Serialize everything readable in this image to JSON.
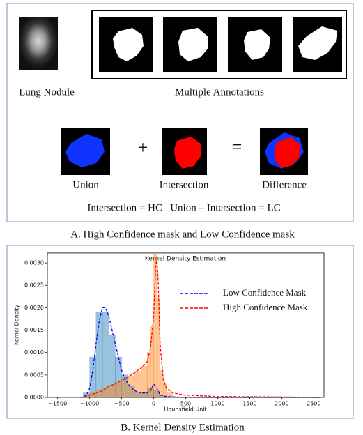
{
  "panel_a": {
    "nodule_label": "Lung Nodule",
    "annotations_label": "Multiple Annotations",
    "union_label": "Union",
    "plus": "+",
    "intersection_label": "Intersection",
    "equals": "=",
    "difference_label": "Difference",
    "formula": "Intersection = HC   Union – Intersection = LC",
    "caption": "A. High Confidence mask and Low Confidence mask"
  },
  "chart_data": {
    "type": "kde",
    "title": "Kernel Density Estimation",
    "x_label": "Hounsfield Unit",
    "y_label": "Kernel Density",
    "xlim": [
      -1660,
      2660
    ],
    "ylim": [
      0,
      0.00322
    ],
    "xticks": [
      {
        "value": -1500,
        "label": "−1500"
      },
      {
        "value": -1000,
        "label": "−1000"
      },
      {
        "value": -500,
        "label": "−500"
      },
      0,
      500,
      1000,
      1500,
      2000,
      2500
    ],
    "yticks": [
      {
        "value": 0,
        "label": "0.0000"
      },
      {
        "value": 0.0005,
        "label": "0.0005"
      },
      {
        "value": 0.001,
        "label": "0.0010"
      },
      {
        "value": 0.0015,
        "label": "0.0015"
      },
      {
        "value": 0.002,
        "label": "0.0020"
      },
      {
        "value": 0.0025,
        "label": "0.0025"
      },
      {
        "value": 0.003,
        "label": "0.0030"
      }
    ],
    "legend": "upper right",
    "histograms": [
      {
        "color": "#1f77b4",
        "bins": [
          -1100,
          -1000,
          -900,
          -800,
          -700,
          -600,
          -500,
          -400,
          -300,
          -200,
          -100,
          0,
          100,
          200
        ],
        "values": [
          0.0001,
          0.0009,
          0.0019,
          0.0019,
          0.0014,
          0.0009,
          0.0005,
          0.00025,
          0.00012,
          0.0001,
          0.00022,
          0.00015,
          2e-05
        ]
      },
      {
        "color": "#ff7f0e",
        "bins": [
          -1100,
          -1000,
          -900,
          -800,
          -700,
          -600,
          -500,
          -400,
          -300,
          -200,
          -100,
          -50,
          0,
          50,
          100,
          150,
          200,
          300
        ],
        "values": [
          5e-05,
          0.0001,
          0.00015,
          0.0002,
          0.00028,
          0.00033,
          0.0004,
          0.00048,
          0.00058,
          0.0007,
          0.001,
          0.0016,
          0.0032,
          0.0022,
          0.0006,
          0.0003,
          0.0001
        ]
      }
    ],
    "series": [
      {
        "name": "Low Confidence Mask",
        "color": "#0000ff",
        "x": [
          -1150,
          -1100,
          -1050,
          -1000,
          -950,
          -900,
          -850,
          -800,
          -750,
          -700,
          -650,
          -600,
          -550,
          -500,
          -450,
          -400,
          -300,
          -200,
          -100,
          -50,
          0,
          50,
          100,
          200,
          500,
          1000,
          2000,
          2600
        ],
        "values": [
          0,
          1e-05,
          5e-05,
          0.0002,
          0.0006,
          0.0012,
          0.0017,
          0.002,
          0.002,
          0.0018,
          0.0015,
          0.0012,
          0.0009,
          0.0006,
          0.00042,
          0.0003,
          0.00015,
          0.0001,
          0.0001,
          0.00015,
          0.0003,
          0.0002,
          5e-05,
          2e-05,
          0,
          0,
          0,
          0
        ]
      },
      {
        "name": "High Confidence Mask",
        "color": "#ff0000",
        "x": [
          -1150,
          -1100,
          -1000,
          -900,
          -800,
          -700,
          -600,
          -500,
          -400,
          -300,
          -200,
          -100,
          -50,
          0,
          30,
          50,
          70,
          100,
          150,
          200,
          300,
          500,
          1000,
          2000,
          2600
        ],
        "values": [
          0,
          1e-05,
          5e-05,
          0.0001,
          0.00015,
          0.00025,
          0.0003,
          0.00038,
          0.00045,
          0.00055,
          0.00065,
          0.0008,
          0.0011,
          0.0018,
          0.0029,
          0.0031,
          0.0026,
          0.0012,
          0.0004,
          0.0002,
          0.0001,
          5e-05,
          2e-05,
          1e-05,
          0
        ]
      }
    ],
    "caption": "B. Kernel Density Estimation"
  }
}
